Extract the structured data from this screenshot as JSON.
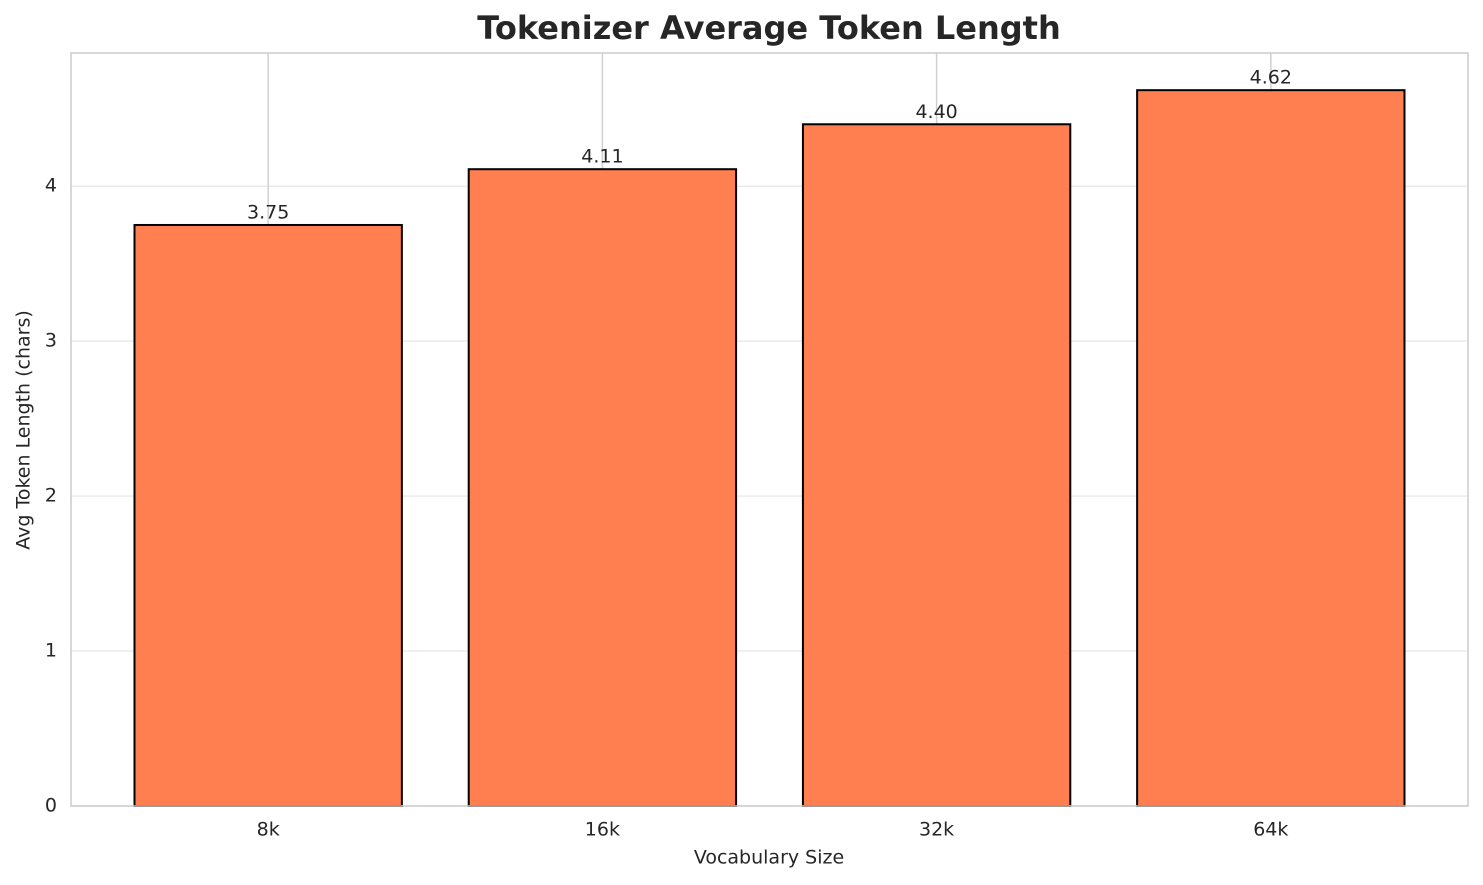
{
  "chart_data": {
    "type": "bar",
    "title": "Tokenizer Average Token Length",
    "x_label": "Vocabulary Size",
    "y_label": "Avg Token Length (chars)",
    "categories": [
      "8k",
      "16k",
      "32k",
      "64k"
    ],
    "values": [
      3.75,
      4.11,
      4.4,
      4.62
    ],
    "value_labels": [
      "3.75",
      "4.11",
      "4.40",
      "4.62"
    ],
    "color": "#ff7f50",
    "edge_color": "#000000",
    "ylim": [
      0,
      4.86
    ],
    "yticks": [
      0,
      1,
      2,
      3,
      4
    ],
    "grid": true
  }
}
